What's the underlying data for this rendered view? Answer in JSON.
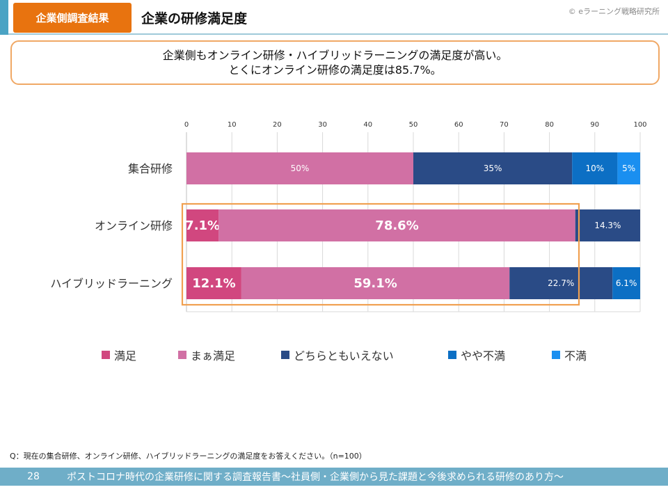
{
  "header": {
    "badge": "企業側調査結果",
    "title": "企業の研修満足度",
    "copyright": "© eラーニング戦略研究所"
  },
  "summary": {
    "line1": "企業側もオンライン研修・ハイブリッドラーニングの満足度が高い。",
    "line2": "とくにオンライン研修の満足度は85.7%。"
  },
  "chart_data": {
    "type": "bar",
    "orientation": "horizontal",
    "stacked": true,
    "xlim": [
      0,
      100
    ],
    "xticks": [
      0,
      10,
      20,
      30,
      40,
      50,
      60,
      70,
      80,
      90,
      100
    ],
    "categories": [
      "集合研修",
      "オンライン研修",
      "ハイブリッドラーニング"
    ],
    "series": [
      {
        "name": "満足",
        "color": "#d1477f",
        "values": [
          0,
          7.1,
          12.1
        ],
        "labels": [
          "",
          "7.1%",
          "12.1%"
        ]
      },
      {
        "name": "まぁ満足",
        "color": "#d170a4",
        "values": [
          50,
          78.6,
          59.1
        ],
        "labels": [
          "50%",
          "78.6%",
          "59.1%"
        ]
      },
      {
        "name": "どちらともいえない",
        "color": "#2a4b86",
        "values": [
          35,
          14.3,
          22.7
        ],
        "labels": [
          "35%",
          "14.3%",
          "22.7%"
        ]
      },
      {
        "name": "やや不満",
        "color": "#0c6fc4",
        "values": [
          10,
          0,
          6.1
        ],
        "labels": [
          "10%",
          "",
          "6.1%"
        ]
      },
      {
        "name": "不満",
        "color": "#1a8ff0",
        "values": [
          5,
          0,
          0
        ],
        "labels": [
          "5%",
          "",
          ""
        ]
      }
    ],
    "emphasized_labels": [
      "7.1%",
      "78.6%",
      "12.1%",
      "59.1%"
    ],
    "highlight_categories": [
      "オンライン研修",
      "ハイブリッドラーニング"
    ],
    "highlight_color": "#f0a050",
    "legend_position": "bottom",
    "grid": true
  },
  "question": "Q：現在の集合研修、オンライン研修、ハイブリッドラーニングの満足度をお答えください。（n=100）",
  "footer": {
    "page": "28",
    "text": "ポストコロナ時代の企業研修に関する調査報告書～社員側・企業側から見た課題と今後求められる研修のあり方～"
  }
}
